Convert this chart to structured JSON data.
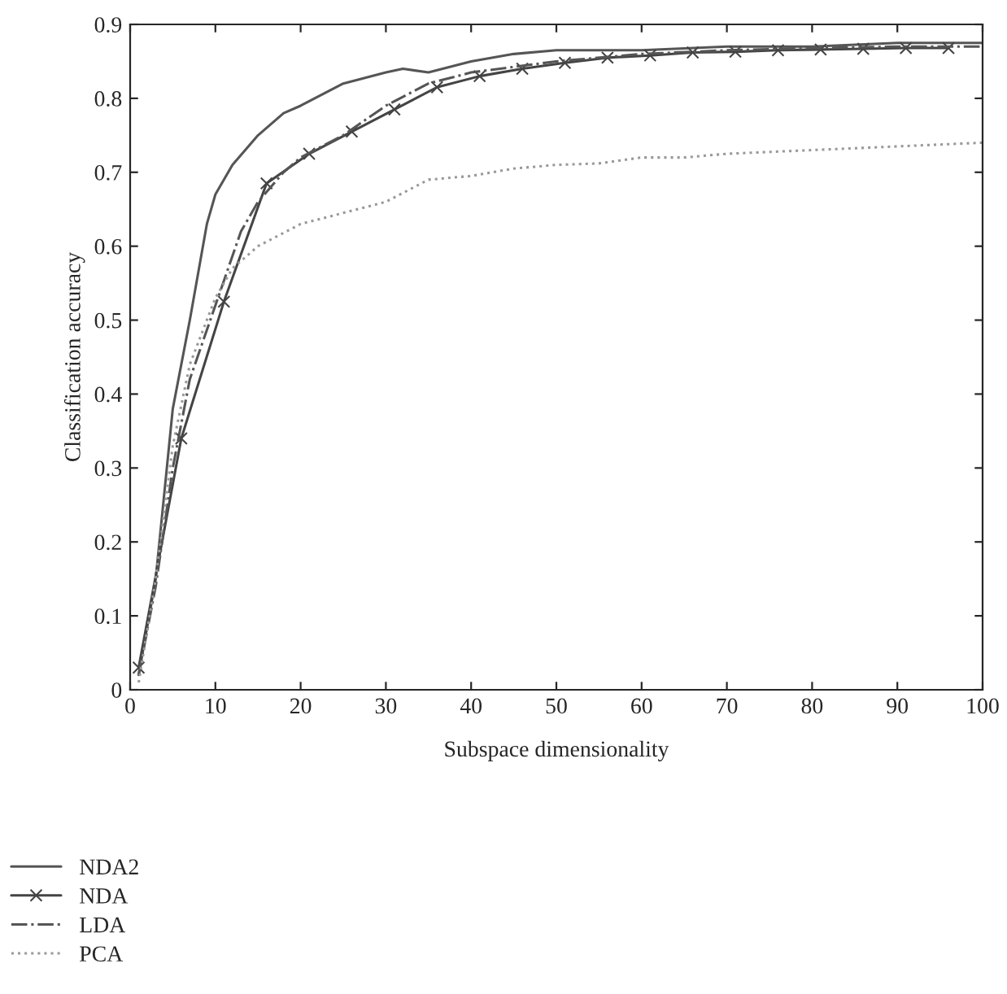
{
  "chart_data": {
    "type": "line",
    "xlabel": "Subspace dimensionality",
    "ylabel": "Classification accuracy",
    "xlim": [
      0,
      100
    ],
    "xticks": [
      0,
      10,
      20,
      30,
      40,
      50,
      60,
      70,
      80,
      90,
      100
    ],
    "ylim": [
      0,
      0.9
    ],
    "yticks": [
      0,
      0.1,
      0.2,
      0.3,
      0.4,
      0.5,
      0.6,
      0.7,
      0.8,
      0.9
    ],
    "legend": "bottom left",
    "series": [
      {
        "name": "NDA2",
        "color": "#555555",
        "line_style": "solid",
        "x": [
          1,
          3,
          5,
          7,
          9,
          10,
          12,
          15,
          18,
          20,
          25,
          30,
          32,
          35,
          40,
          45,
          50,
          60,
          70,
          80,
          90,
          100
        ],
        "values": [
          0.02,
          0.15,
          0.38,
          0.5,
          0.63,
          0.67,
          0.71,
          0.75,
          0.78,
          0.79,
          0.82,
          0.835,
          0.84,
          0.835,
          0.85,
          0.86,
          0.865,
          0.865,
          0.87,
          0.87,
          0.875,
          0.875
        ]
      },
      {
        "name": "NDA",
        "color": "#444444",
        "line_style": "solid",
        "marker": "cross",
        "x": [
          1,
          6,
          11,
          16,
          21,
          26,
          31,
          36,
          41,
          46,
          51,
          56,
          61,
          66,
          71,
          76,
          81,
          86,
          91,
          96
        ],
        "values": [
          0.03,
          0.34,
          0.525,
          0.685,
          0.725,
          0.755,
          0.785,
          0.815,
          0.83,
          0.84,
          0.848,
          0.855,
          0.858,
          0.862,
          0.863,
          0.865,
          0.866,
          0.867,
          0.868,
          0.868
        ]
      },
      {
        "name": "LDA",
        "color": "#555555",
        "line_style": "dashdot",
        "x": [
          1,
          3,
          5,
          7,
          10,
          13,
          15,
          18,
          20,
          25,
          30,
          35,
          40,
          50,
          60,
          70,
          80,
          90,
          100
        ],
        "values": [
          0.02,
          0.14,
          0.3,
          0.42,
          0.52,
          0.62,
          0.66,
          0.7,
          0.72,
          0.75,
          0.79,
          0.82,
          0.835,
          0.85,
          0.86,
          0.865,
          0.868,
          0.87,
          0.87
        ]
      },
      {
        "name": "PCA",
        "color": "#999999",
        "line_style": "dotted",
        "x": [
          1,
          3,
          5,
          7,
          10,
          12,
          15,
          20,
          25,
          30,
          35,
          40,
          45,
          50,
          55,
          60,
          65,
          70,
          80,
          90,
          100
        ],
        "values": [
          0.01,
          0.15,
          0.33,
          0.44,
          0.53,
          0.57,
          0.6,
          0.63,
          0.645,
          0.66,
          0.69,
          0.695,
          0.705,
          0.71,
          0.712,
          0.72,
          0.72,
          0.725,
          0.73,
          0.735,
          0.74
        ]
      }
    ]
  }
}
